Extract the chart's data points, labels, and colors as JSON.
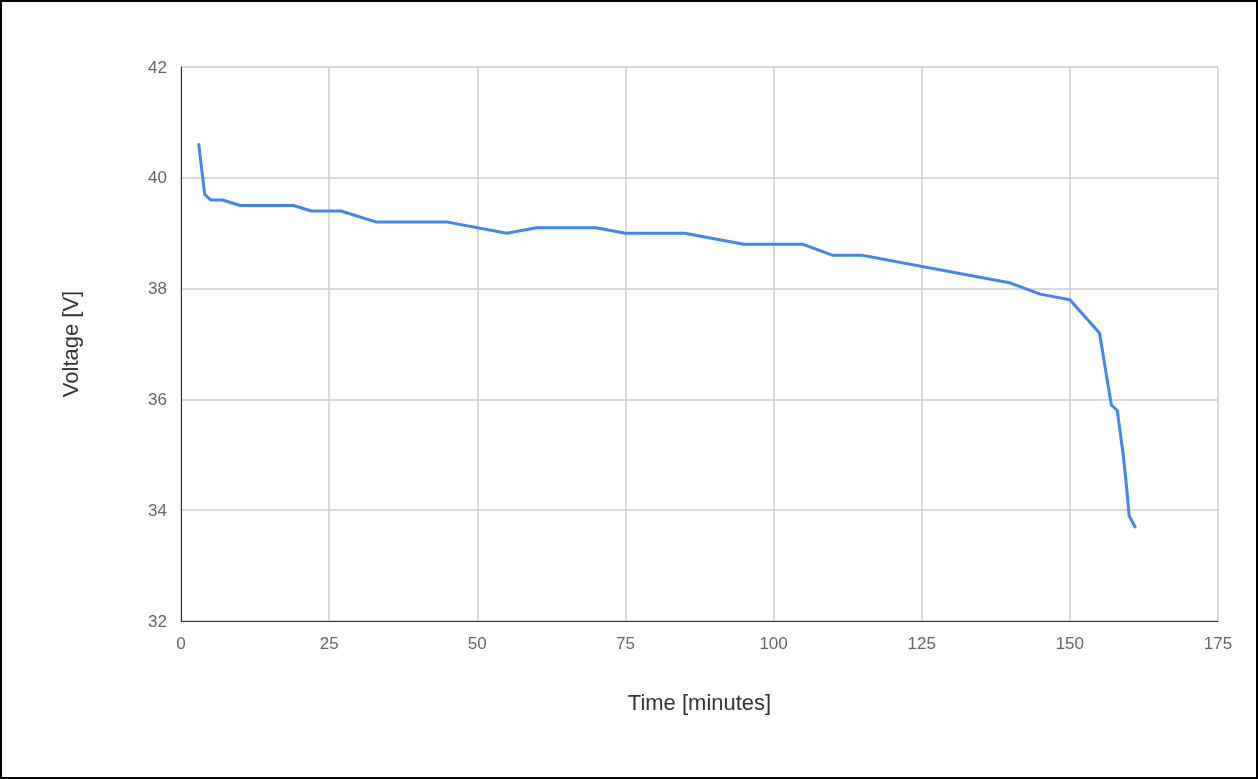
{
  "chart_data": {
    "type": "line",
    "xlabel": "Time [minutes]",
    "ylabel": "Voltage [V]",
    "x": [
      3,
      4,
      5,
      7,
      10,
      19,
      22,
      27,
      33,
      45,
      55,
      60,
      70,
      75,
      85,
      95,
      105,
      110,
      115,
      140,
      145,
      150,
      155,
      157,
      158,
      159,
      159.5,
      160,
      161
    ],
    "series": [
      {
        "color": "#4285f4",
        "values": [
          40.6,
          39.7,
          39.6,
          39.6,
          39.5,
          39.5,
          39.4,
          39.4,
          39.2,
          39.2,
          39.0,
          39.1,
          39.1,
          39.0,
          39.0,
          38.8,
          38.8,
          38.6,
          38.6,
          38.1,
          37.9,
          37.8,
          37.2,
          35.9,
          35.8,
          35.0,
          34.5,
          33.9,
          33.7
        ]
      }
    ],
    "xlim": [
      0,
      175
    ],
    "xticks": [
      0,
      25,
      50,
      75,
      100,
      125,
      150,
      175
    ],
    "ylim": [
      32,
      42
    ],
    "yticks": [
      32,
      34,
      36,
      38,
      40,
      42
    ],
    "grid": true,
    "marker": "none",
    "line_style": "solid"
  }
}
